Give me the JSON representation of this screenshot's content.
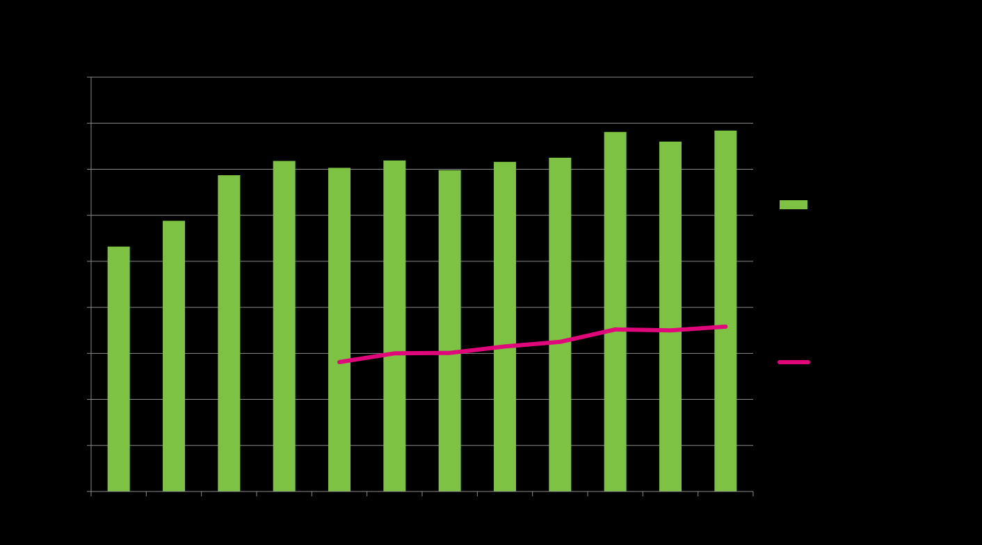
{
  "chart_data": {
    "type": "bar",
    "categories": [
      "",
      "",
      "",
      "",
      "",
      "",
      "",
      "",
      "",
      "",
      "",
      ""
    ],
    "ylim": [
      0,
      9
    ],
    "grid": true,
    "legend_placement": "right",
    "series": [
      {
        "kind": "bar",
        "color": "#7dc242",
        "values": [
          5.32,
          5.88,
          6.87,
          7.18,
          7.03,
          7.19,
          6.98,
          7.16,
          7.25,
          7.81,
          7.6,
          7.84
        ]
      },
      {
        "kind": "line",
        "color": "#e0077a",
        "values": [
          null,
          null,
          null,
          null,
          2.81,
          3.0,
          3.01,
          3.15,
          3.25,
          3.52,
          3.5,
          3.58
        ]
      }
    ]
  }
}
